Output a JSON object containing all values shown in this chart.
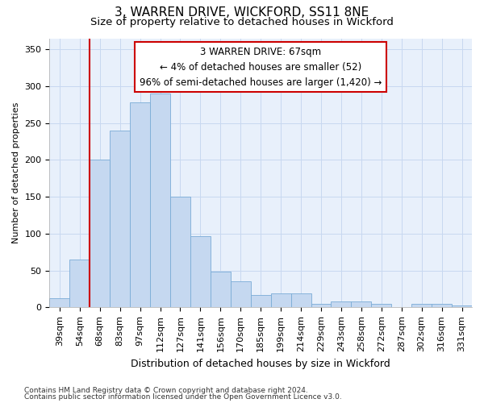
{
  "title": "3, WARREN DRIVE, WICKFORD, SS11 8NE",
  "subtitle": "Size of property relative to detached houses in Wickford",
  "xlabel": "Distribution of detached houses by size in Wickford",
  "ylabel": "Number of detached properties",
  "categories": [
    "39sqm",
    "54sqm",
    "68sqm",
    "83sqm",
    "97sqm",
    "112sqm",
    "127sqm",
    "141sqm",
    "156sqm",
    "170sqm",
    "185sqm",
    "199sqm",
    "214sqm",
    "229sqm",
    "243sqm",
    "258sqm",
    "272sqm",
    "287sqm",
    "302sqm",
    "316sqm",
    "331sqm"
  ],
  "values": [
    12,
    65,
    200,
    240,
    278,
    290,
    150,
    97,
    48,
    35,
    17,
    19,
    19,
    5,
    8,
    8,
    5,
    0,
    5,
    5,
    2
  ],
  "bar_color": "#c5d8f0",
  "bar_edgecolor": "#7aacd6",
  "bar_linewidth": 0.6,
  "vline_x_index": 2,
  "vline_color": "#cc0000",
  "annotation_line1": "3 WARREN DRIVE: 67sqm",
  "annotation_line2": "← 4% of detached houses are smaller (52)",
  "annotation_line3": "96% of semi-detached houses are larger (1,420) →",
  "annotation_box_color": "#cc0000",
  "ylim": [
    0,
    365
  ],
  "yticks": [
    0,
    50,
    100,
    150,
    200,
    250,
    300,
    350
  ],
  "grid_color": "#c8d8f0",
  "background_color": "#e8f0fb",
  "footer_line1": "Contains HM Land Registry data © Crown copyright and database right 2024.",
  "footer_line2": "Contains public sector information licensed under the Open Government Licence v3.0.",
  "title_fontsize": 11,
  "subtitle_fontsize": 9.5,
  "xlabel_fontsize": 9,
  "ylabel_fontsize": 8,
  "tick_fontsize": 8,
  "footer_fontsize": 6.5,
  "annotation_fontsize": 8.5
}
